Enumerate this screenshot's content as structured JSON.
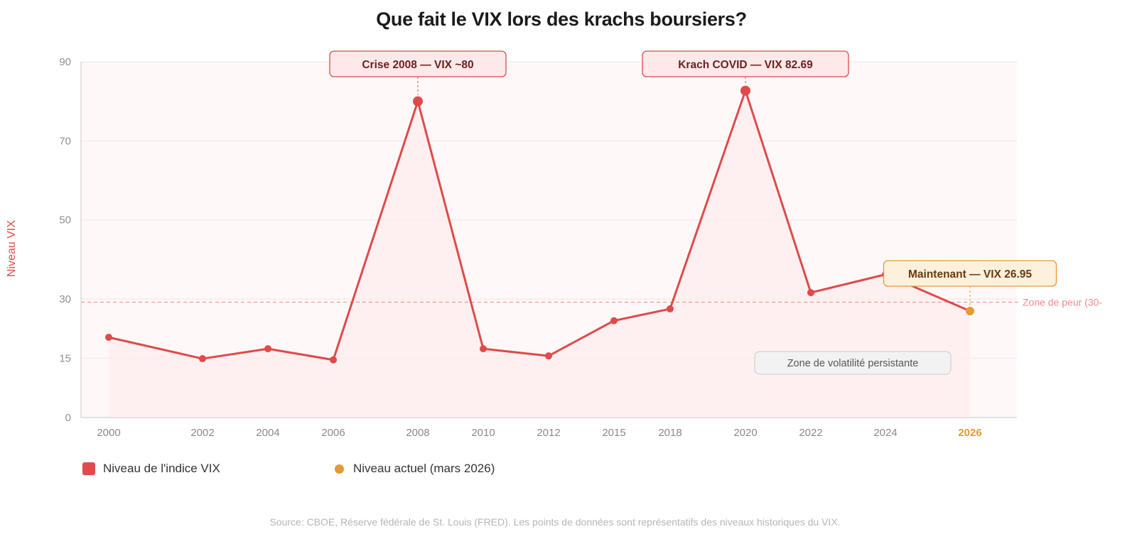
{
  "title": "Que fait le VIX lors des krachs boursiers?",
  "source": "Source: CBOE, Réserve fédérale de St. Louis (FRED). Les points de données sont représentatifs des niveaux historiques du VIX.",
  "colors": {
    "line": "#e04a4a",
    "current": "#e59a33",
    "fear_zone": "#f08a8a",
    "axis_text": "#8f8f8f"
  },
  "legend": {
    "vix": "Niveau de l'indice VIX",
    "current": "Niveau actuel (mars 2026)"
  },
  "chart_data": {
    "type": "line",
    "title": "Que fait le VIX lors des krachs boursiers?",
    "xlabel": "",
    "ylabel": "Niveau VIX",
    "ylim": [
      0,
      90
    ],
    "yticks": [
      0,
      15,
      30,
      50,
      70,
      90
    ],
    "categories": [
      "2000",
      "2002",
      "2004",
      "2006",
      "2008",
      "2010",
      "2012",
      "2015",
      "2018",
      "2020",
      "2022",
      "2024",
      "2026"
    ],
    "series": [
      {
        "name": "Niveau de l'indice VIX",
        "points": [
          {
            "x": "2000",
            "y": 20.3
          },
          {
            "x": "2002",
            "y": 14.9
          },
          {
            "x": "2004",
            "y": 17.4
          },
          {
            "x": "2006",
            "y": 14.6
          },
          {
            "x": "2008",
            "y": 80
          },
          {
            "x": "2010",
            "y": 17.4
          },
          {
            "x": "2012",
            "y": 15.6
          },
          {
            "x": "2015",
            "y": 24.5
          },
          {
            "x": "2018",
            "y": 27.5
          },
          {
            "x": "2020",
            "y": 82.69
          },
          {
            "x": "2022",
            "y": 31.6
          },
          {
            "x": "2024",
            "y": 36.2
          },
          {
            "x": "2026",
            "y": 26.95
          }
        ]
      },
      {
        "name": "Niveau actuel (mars 2026)",
        "points": [
          {
            "x": "2026",
            "y": 26.95
          }
        ]
      }
    ],
    "reference_line": {
      "y": 29.2,
      "label": "Zone de peur (30-"
    },
    "annotations": [
      {
        "x": "2008",
        "text": "Crise 2008 — VIX ~80",
        "style": "crisis"
      },
      {
        "x": "2020",
        "text": "Krach COVID — VIX 82.69",
        "style": "crisis"
      },
      {
        "x": "2026",
        "text": "Maintenant — VIX 26.95",
        "style": "current"
      }
    ],
    "region_label": "Zone de volatilité persistante",
    "grid": true,
    "legend_position": "bottom-left"
  }
}
